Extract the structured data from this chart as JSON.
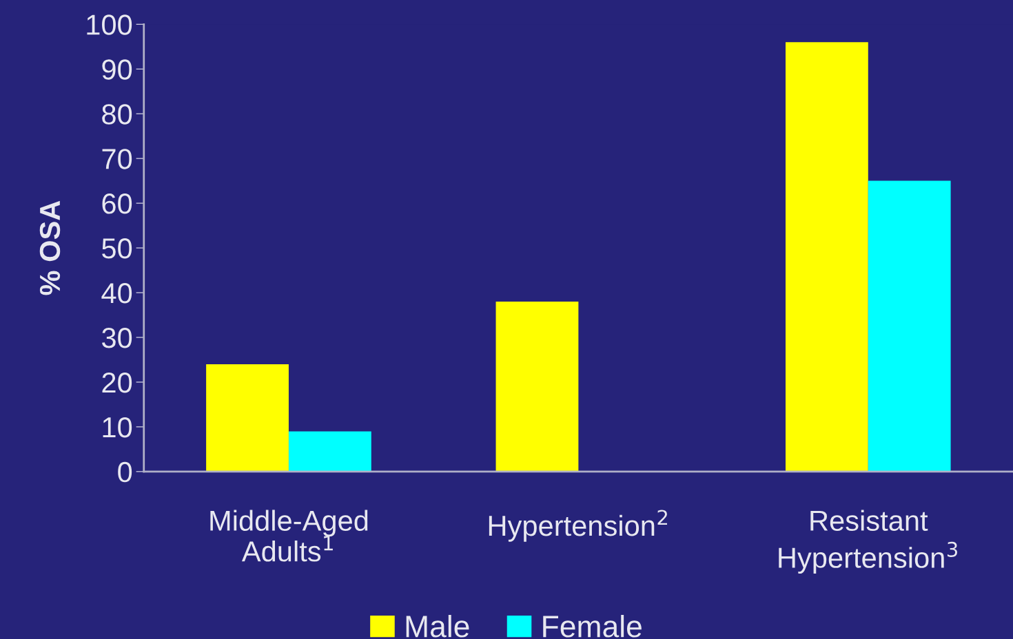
{
  "chart_data": {
    "type": "bar",
    "ylabel": "% OSA",
    "categories": [
      "Middle-Aged\nAdults$^{1}$",
      "Hypertension$^{2}$",
      "Resistant\nHypertension$^{3}$"
    ],
    "series": [
      {
        "name": "Male",
        "color": "#ffff00",
        "values": [
          24,
          38,
          96
        ]
      },
      {
        "name": "Female",
        "color": "#00ffff",
        "values": [
          9,
          null,
          65
        ]
      }
    ],
    "ylim": [
      0,
      100
    ],
    "yticks": [
      0,
      10,
      20,
      30,
      40,
      50,
      60,
      70,
      80,
      90,
      100
    ],
    "grid": false,
    "legend": "bottom"
  }
}
